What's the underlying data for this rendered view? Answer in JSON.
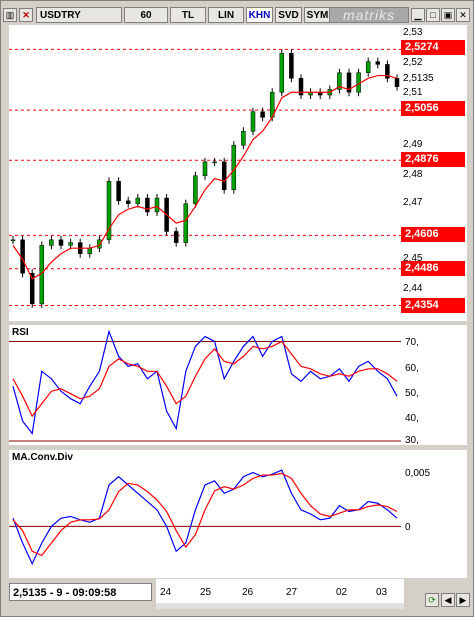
{
  "toolbar": {
    "symbol": "USDTRY",
    "period": "60",
    "currency": "TL",
    "scale": "LIN",
    "mode_khn": "KHN",
    "mode_svd": "SVD",
    "mode_sym": "SYM",
    "brand": "matriks",
    "icons": [
      "chart-icon",
      "close-icon",
      "minimize-icon",
      "maximize-icon",
      "window-close-icon"
    ]
  },
  "price_panel": {
    "y_ticks": [
      "2,53",
      "2,52",
      "2,5135",
      "2,51",
      "2,49",
      "2,48",
      "2,47",
      "2,45",
      "2,44"
    ],
    "levels": [
      "2,5274",
      "2,5056",
      "2,4876",
      "2,4606",
      "2,4486",
      "2,4354"
    ],
    "colors": {
      "ma": "#ff0000",
      "candle_up": "#00a000",
      "candle_down": "#000000",
      "level_line": "#ff0000",
      "badge": "#ff0000"
    }
  },
  "rsi_panel": {
    "label": "RSI",
    "y_ticks": [
      "70,",
      "60,",
      "50,",
      "40,",
      "30,"
    ]
  },
  "macd_panel": {
    "label": "MA.Conv.Div",
    "y_ticks": [
      "0,005",
      "0"
    ]
  },
  "status": {
    "readout": "2,5135 - 9 - 09:09:58"
  },
  "time_axis": {
    "dates": [
      "24",
      "25",
      "26",
      "27",
      "02",
      "03"
    ]
  },
  "chart_data": [
    {
      "type": "line",
      "name": "price",
      "x": [
        0,
        2,
        4,
        6,
        8,
        10,
        12,
        14,
        16,
        18,
        20,
        22,
        24,
        26,
        28,
        30,
        32,
        34,
        36,
        38,
        40,
        42,
        44,
        46,
        48,
        50,
        52,
        54,
        56,
        58,
        60,
        62,
        64,
        66,
        68,
        70,
        72,
        74,
        76,
        78,
        80
      ],
      "values": [
        2.459,
        2.447,
        2.436,
        2.457,
        2.459,
        2.457,
        2.458,
        2.454,
        2.456,
        2.459,
        2.48,
        2.473,
        2.472,
        2.474,
        2.469,
        2.474,
        2.462,
        2.458,
        2.472,
        2.482,
        2.487,
        2.487,
        2.477,
        2.493,
        2.498,
        2.505,
        2.503,
        2.512,
        2.526,
        2.517,
        2.511,
        2.512,
        2.511,
        2.513,
        2.519,
        2.512,
        2.519,
        2.523,
        2.522,
        2.517,
        2.514
      ],
      "ma": [
        2.457,
        2.452,
        2.445,
        2.447,
        2.451,
        2.454,
        2.456,
        2.456,
        2.456,
        2.457,
        2.463,
        2.468,
        2.47,
        2.471,
        2.47,
        2.471,
        2.468,
        2.465,
        2.466,
        2.471,
        2.477,
        2.481,
        2.48,
        2.484,
        2.489,
        2.495,
        2.498,
        2.503,
        2.51,
        2.512,
        2.512,
        2.512,
        2.512,
        2.512,
        2.514,
        2.513,
        2.515,
        2.517,
        2.518,
        2.518,
        2.517
      ],
      "ylim": [
        2.432,
        2.534
      ]
    },
    {
      "type": "line",
      "name": "rsi",
      "x": [
        0,
        2,
        4,
        6,
        8,
        10,
        12,
        14,
        16,
        18,
        20,
        22,
        24,
        26,
        28,
        30,
        32,
        34,
        36,
        38,
        40,
        42,
        44,
        46,
        48,
        50,
        52,
        54,
        56,
        58,
        60,
        62,
        64,
        66,
        68,
        70,
        72,
        74,
        76,
        78,
        80
      ],
      "values": [
        52,
        38,
        33,
        58,
        55,
        50,
        47,
        45,
        52,
        58,
        74,
        64,
        60,
        61,
        55,
        58,
        42,
        35,
        58,
        68,
        72,
        70,
        55,
        62,
        68,
        72,
        64,
        70,
        72,
        57,
        54,
        58,
        55,
        56,
        59,
        54,
        60,
        62,
        58,
        55,
        48
      ],
      "signal": [
        55,
        48,
        40,
        45,
        50,
        51,
        49,
        47,
        48,
        51,
        60,
        63,
        61,
        60,
        58,
        58,
        52,
        45,
        48,
        56,
        63,
        67,
        62,
        61,
        64,
        68,
        67,
        68,
        70,
        65,
        60,
        59,
        57,
        56,
        57,
        56,
        58,
        59,
        59,
        57,
        54
      ],
      "ylim": [
        30,
        75
      ]
    },
    {
      "type": "line",
      "name": "macd",
      "x": [
        0,
        2,
        4,
        6,
        8,
        10,
        12,
        14,
        16,
        18,
        20,
        22,
        24,
        26,
        28,
        30,
        32,
        34,
        36,
        38,
        40,
        42,
        44,
        46,
        48,
        50,
        52,
        54,
        56,
        58,
        60,
        62,
        64,
        66,
        68,
        70,
        72,
        74,
        76,
        78,
        80
      ],
      "values": [
        0.001,
        -0.002,
        -0.0045,
        -0.002,
        0.0,
        0.001,
        0.0012,
        0.0008,
        0.0005,
        0.001,
        0.005,
        0.006,
        0.005,
        0.004,
        0.003,
        0.002,
        0.0,
        -0.003,
        -0.002,
        0.002,
        0.005,
        0.0055,
        0.004,
        0.0045,
        0.006,
        0.0065,
        0.006,
        0.0063,
        0.0068,
        0.004,
        0.002,
        0.0015,
        0.0008,
        0.001,
        0.0025,
        0.0018,
        0.002,
        0.003,
        0.0028,
        0.002,
        0.001
      ],
      "signal": [
        0.0008,
        -0.0005,
        -0.003,
        -0.0035,
        -0.002,
        -0.0005,
        0.0005,
        0.0008,
        0.0008,
        0.0009,
        0.002,
        0.0042,
        0.0052,
        0.005,
        0.0042,
        0.0032,
        0.0018,
        -0.0005,
        -0.0025,
        -0.001,
        0.002,
        0.0043,
        0.0048,
        0.0045,
        0.005,
        0.0058,
        0.0062,
        0.0062,
        0.0064,
        0.0058,
        0.004,
        0.0025,
        0.0015,
        0.0012,
        0.0016,
        0.002,
        0.002,
        0.0024,
        0.0026,
        0.0024,
        0.0018
      ],
      "ylim": [
        -0.0055,
        0.0085
      ]
    }
  ]
}
